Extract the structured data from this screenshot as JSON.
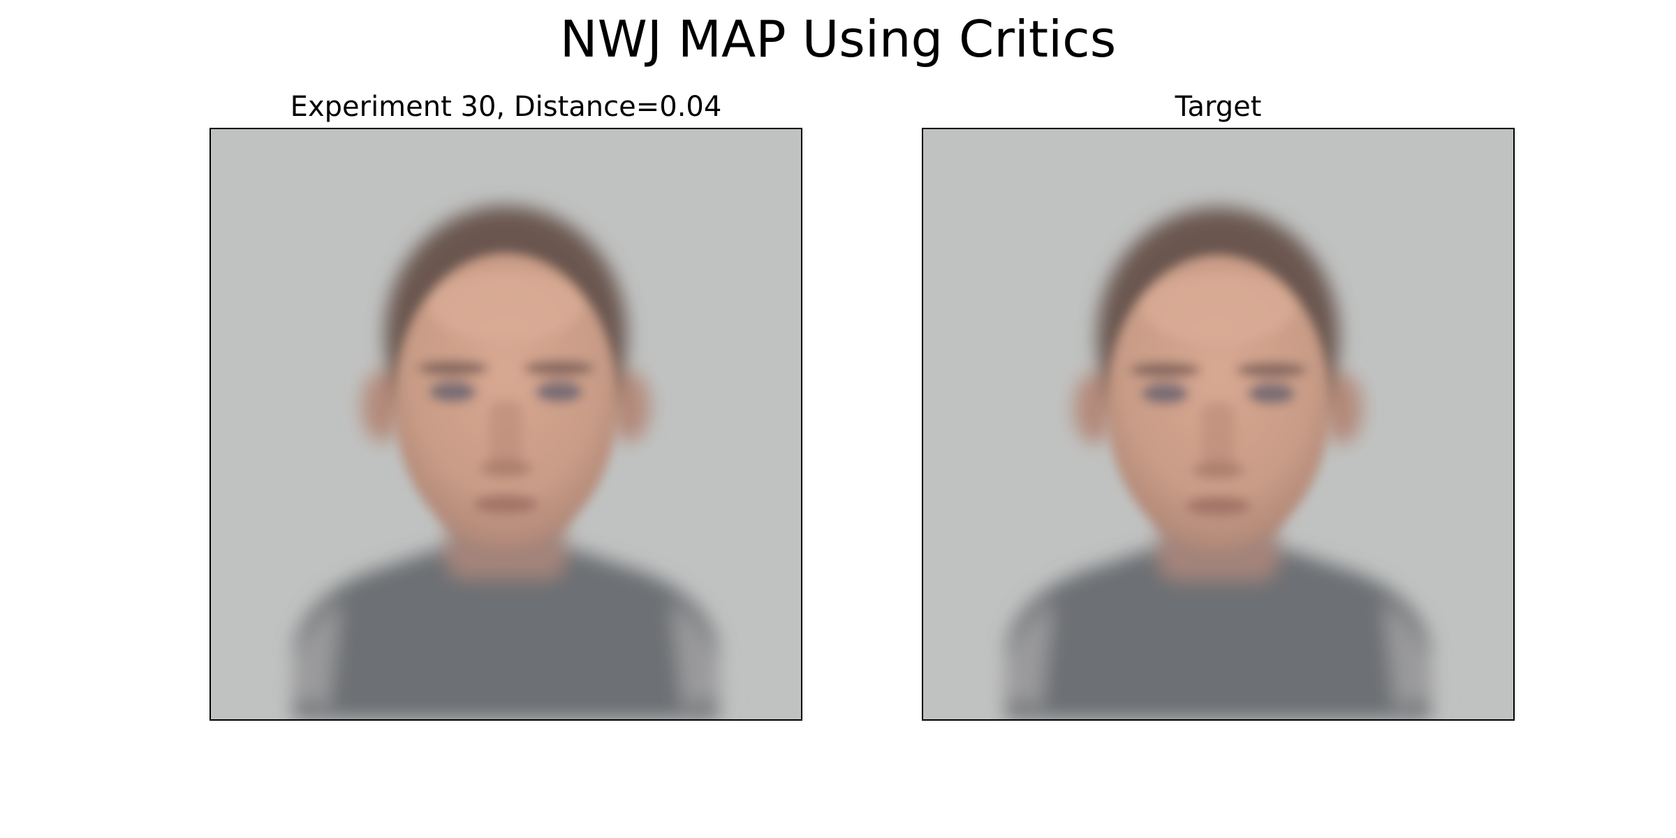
{
  "figure": {
    "title": "NWJ MAP Using Critics"
  },
  "panels": [
    {
      "title": "Experiment 30, Distance=0.04"
    },
    {
      "title": "Target"
    }
  ],
  "colors": {
    "background": "#c0c2c1",
    "skin": "#c89c86",
    "hair": "#6a5650",
    "shirt": "#686c70",
    "frame": "#000000"
  }
}
